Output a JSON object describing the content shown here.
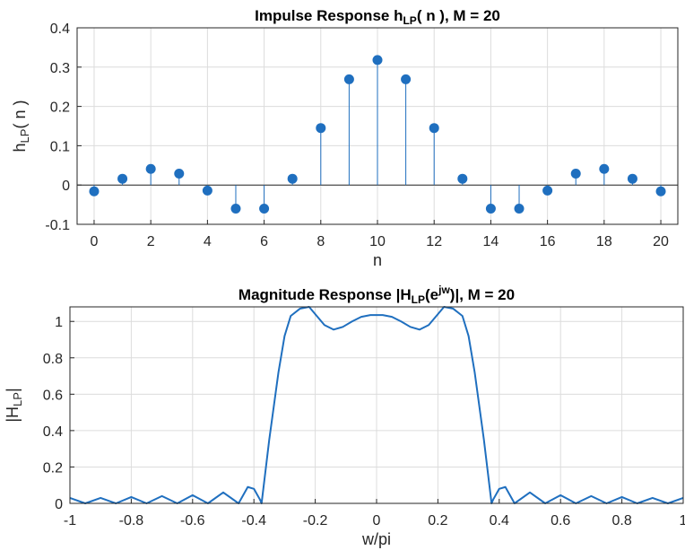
{
  "colors": {
    "series": "#1f6fbf",
    "grid": "#dcdcdc",
    "axis": "#262626",
    "text": "#262626"
  },
  "chart_data": [
    {
      "type": "stem",
      "title": {
        "main": "Impulse  Response  h",
        "sub": "LP",
        "rest": "(  n  ),  M  =  20"
      },
      "xlabel": "n",
      "ylabel": {
        "main": "h",
        "sub": "LP",
        "rest": "(  n  )"
      },
      "xlim": [
        -0.6,
        20.6
      ],
      "ylim": [
        -0.1,
        0.4
      ],
      "xticks": [
        0,
        2,
        4,
        6,
        8,
        10,
        12,
        14,
        16,
        18,
        20
      ],
      "xtick_labels": [
        "0",
        "2",
        "4",
        "6",
        "8",
        "10",
        "12",
        "14",
        "16",
        "18",
        "20"
      ],
      "yticks": [
        -0.1,
        0,
        0.1,
        0.2,
        0.3,
        0.4
      ],
      "ytick_labels": [
        "-0.1",
        "0",
        "0.1",
        "0.2",
        "0.3",
        "0.4"
      ],
      "grid": true,
      "x": [
        0,
        1,
        2,
        3,
        4,
        5,
        6,
        7,
        8,
        9,
        10,
        11,
        12,
        13,
        14,
        15,
        16,
        17,
        18,
        19,
        20
      ],
      "values": [
        -0.016,
        0.016,
        0.041,
        0.029,
        -0.014,
        -0.06,
        -0.06,
        0.016,
        0.145,
        0.269,
        0.318,
        0.269,
        0.145,
        0.016,
        -0.06,
        -0.06,
        -0.014,
        0.029,
        0.041,
        0.016,
        -0.016
      ]
    },
    {
      "type": "line",
      "title": {
        "main": "Magnitude  Response  |H",
        "sub": "LP",
        "mid": "(e",
        "sup": "jw",
        "rest": ")|,  M  =  20"
      },
      "xlabel": "w/pi",
      "ylabel": {
        "main": "|H",
        "sub": "LP",
        "rest": "|"
      },
      "xlim": [
        -1,
        1
      ],
      "ylim": [
        0,
        1.08
      ],
      "xticks": [
        -1,
        -0.8,
        -0.6,
        -0.4,
        -0.2,
        0,
        0.2,
        0.4,
        0.6,
        0.8,
        1
      ],
      "xtick_labels": [
        "-1",
        "-0.8",
        "-0.6",
        "-0.4",
        "-0.2",
        "0",
        "0.2",
        "0.4",
        "0.6",
        "0.8",
        "1"
      ],
      "yticks": [
        0,
        0.2,
        0.4,
        0.6,
        0.8,
        1
      ],
      "ytick_labels": [
        "0",
        "0.2",
        "0.4",
        "0.6",
        "0.8",
        "1"
      ],
      "grid": true,
      "series": [
        {
          "name": "|H_LP(e^jw)|",
          "x": [
            -1,
            -0.95,
            -0.9,
            -0.85,
            -0.8,
            -0.75,
            -0.7,
            -0.65,
            -0.6,
            -0.55,
            -0.5,
            -0.45,
            -0.42,
            -0.4,
            -0.39,
            -0.38,
            -0.375,
            -0.35,
            -0.32,
            -0.3,
            -0.28,
            -0.25,
            -0.22,
            -0.2,
            -0.17,
            -0.14,
            -0.11,
            -0.08,
            -0.05,
            -0.02,
            0,
            0.02,
            0.05,
            0.08,
            0.11,
            0.14,
            0.17,
            0.2,
            0.22,
            0.25,
            0.28,
            0.3,
            0.32,
            0.35,
            0.375,
            0.38,
            0.39,
            0.4,
            0.42,
            0.45,
            0.5,
            0.55,
            0.6,
            0.65,
            0.7,
            0.75,
            0.8,
            0.85,
            0.9,
            0.95,
            1
          ],
          "y": [
            0.03,
            0.0,
            0.03,
            0.0,
            0.035,
            0.0,
            0.04,
            0.0,
            0.045,
            0.0,
            0.06,
            0.0,
            0.09,
            0.08,
            0.05,
            0.02,
            0.0,
            0.35,
            0.72,
            0.92,
            1.03,
            1.07,
            1.08,
            1.04,
            0.98,
            0.955,
            0.97,
            1.0,
            1.025,
            1.035,
            1.035,
            1.035,
            1.025,
            1.0,
            0.97,
            0.955,
            0.98,
            1.04,
            1.08,
            1.07,
            1.03,
            0.92,
            0.72,
            0.35,
            0.0,
            0.02,
            0.05,
            0.08,
            0.09,
            0.0,
            0.06,
            0.0,
            0.045,
            0.0,
            0.04,
            0.0,
            0.035,
            0.0,
            0.03,
            0.0,
            0.03
          ]
        }
      ]
    }
  ]
}
